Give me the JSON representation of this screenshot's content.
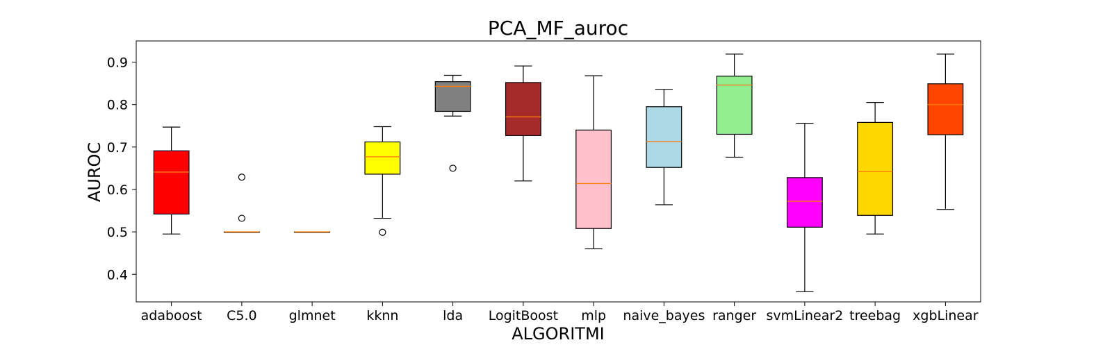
{
  "chart_data": {
    "type": "box",
    "title": "PCA_MF_auroc",
    "xlabel": "ALGORITMI",
    "ylabel": "AUROC",
    "ylim": [
      0.335,
      0.95
    ],
    "yticks": [
      0.4,
      0.5,
      0.6,
      0.7,
      0.8,
      0.9
    ],
    "ytick_labels": [
      "0.4",
      "0.5",
      "0.6",
      "0.7",
      "0.8",
      "0.9"
    ],
    "grid": false,
    "median_color": "#ff7f0e",
    "categories": [
      "adaboost",
      "C5.0",
      "glmnet",
      "kknn",
      "lda",
      "LogitBoost",
      "mlp",
      "naive_bayes",
      "ranger",
      "svmLinear2",
      "treebag",
      "xgbLinear"
    ],
    "boxes": [
      {
        "name": "adaboost",
        "color": "#ff0000",
        "whisker_low": 0.495,
        "q1": 0.542,
        "median": 0.641,
        "q3": 0.691,
        "whisker_high": 0.747,
        "outliers": []
      },
      {
        "name": "C5.0",
        "color": "#ff0000",
        "whisker_low": 0.5,
        "q1": 0.5,
        "median": 0.5,
        "q3": 0.5,
        "whisker_high": 0.5,
        "outliers": [
          0.532,
          0.629
        ]
      },
      {
        "name": "glmnet",
        "color": "#ff0000",
        "whisker_low": 0.5,
        "q1": 0.5,
        "median": 0.5,
        "q3": 0.5,
        "whisker_high": 0.5,
        "outliers": []
      },
      {
        "name": "kknn",
        "color": "#ffff00",
        "whisker_low": 0.532,
        "q1": 0.636,
        "median": 0.677,
        "q3": 0.712,
        "whisker_high": 0.748,
        "outliers": [
          0.499
        ]
      },
      {
        "name": "lda",
        "color": "#808080",
        "whisker_low": 0.773,
        "q1": 0.784,
        "median": 0.843,
        "q3": 0.854,
        "whisker_high": 0.869,
        "outliers": [
          0.65
        ]
      },
      {
        "name": "LogitBoost",
        "color": "#a52a2a",
        "whisker_low": 0.62,
        "q1": 0.727,
        "median": 0.771,
        "q3": 0.852,
        "whisker_high": 0.891,
        "outliers": []
      },
      {
        "name": "mlp",
        "color": "#ffc0cb",
        "whisker_low": 0.46,
        "q1": 0.508,
        "median": 0.614,
        "q3": 0.74,
        "whisker_high": 0.868,
        "outliers": []
      },
      {
        "name": "naive_bayes",
        "color": "#add8e6",
        "whisker_low": 0.564,
        "q1": 0.652,
        "median": 0.713,
        "q3": 0.795,
        "whisker_high": 0.836,
        "outliers": []
      },
      {
        "name": "ranger",
        "color": "#90ee90",
        "whisker_low": 0.676,
        "q1": 0.73,
        "median": 0.846,
        "q3": 0.867,
        "whisker_high": 0.919,
        "outliers": []
      },
      {
        "name": "svmLinear2",
        "color": "#ff00ff",
        "whisker_low": 0.359,
        "q1": 0.511,
        "median": 0.572,
        "q3": 0.628,
        "whisker_high": 0.756,
        "outliers": []
      },
      {
        "name": "treebag",
        "color": "#ffd700",
        "whisker_low": 0.495,
        "q1": 0.539,
        "median": 0.642,
        "q3": 0.758,
        "whisker_high": 0.805,
        "outliers": []
      },
      {
        "name": "xgbLinear",
        "color": "#ff4500",
        "whisker_low": 0.553,
        "q1": 0.729,
        "median": 0.8,
        "q3": 0.849,
        "whisker_high": 0.919,
        "outliers": []
      }
    ]
  }
}
